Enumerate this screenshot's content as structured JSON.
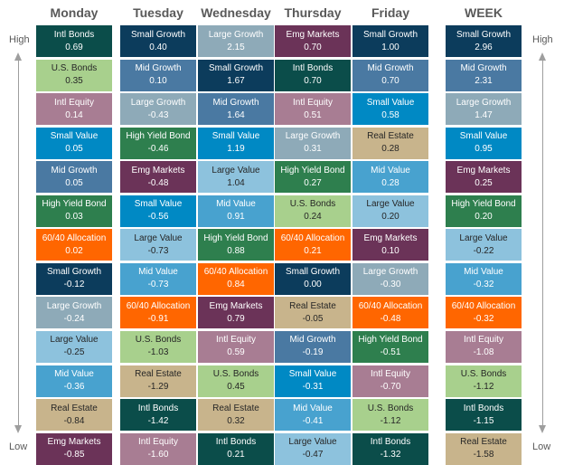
{
  "colors": {
    "Intl Bonds": "#0b4d4a",
    "U.S. Bonds": "#a8d08d",
    "Intl Equity": "#a87d93",
    "Small Value": "#0089c4",
    "Mid Growth": "#4a79a2",
    "High Yield Bond": "#2e7f4e",
    "60/40 Allocation": "#ff6600",
    "Small Growth": "#0c3c5c",
    "Large Growth": "#8eaab8",
    "Large Value": "#8dc2dd",
    "Mid Value": "#48a2cf",
    "Real Estate": "#c8b48c",
    "Emg Markets": "#6b3358"
  },
  "dark_text_assets": [
    "U.S. Bonds",
    "Large Value",
    "Real Estate"
  ],
  "side_labels": {
    "high_left": "High",
    "low_left": "Low",
    "high_right": "High",
    "low_right": "Low"
  },
  "chart_data": {
    "type": "table",
    "title": "",
    "columns": [
      {
        "name": "Monday",
        "rows": [
          {
            "asset": "Intl Bonds",
            "value": "0.69"
          },
          {
            "asset": "U.S. Bonds",
            "value": "0.35"
          },
          {
            "asset": "Intl Equity",
            "value": "0.14"
          },
          {
            "asset": "Small Value",
            "value": "0.05"
          },
          {
            "asset": "Mid Growth",
            "value": "0.05"
          },
          {
            "asset": "High Yield Bond",
            "value": "0.03"
          },
          {
            "asset": "60/40 Allocation",
            "value": "0.02"
          },
          {
            "asset": "Small Growth",
            "value": "-0.12"
          },
          {
            "asset": "Large Growth",
            "value": "-0.24"
          },
          {
            "asset": "Large Value",
            "value": "-0.25"
          },
          {
            "asset": "Mid Value",
            "value": "-0.36"
          },
          {
            "asset": "Real Estate",
            "value": "-0.84"
          },
          {
            "asset": "Emg Markets",
            "value": "-0.85"
          }
        ]
      },
      {
        "name": "Tuesday",
        "rows": [
          {
            "asset": "Small Growth",
            "value": "0.40"
          },
          {
            "asset": "Mid Growth",
            "value": "0.10"
          },
          {
            "asset": "Large Growth",
            "value": "-0.43"
          },
          {
            "asset": "High Yield Bond",
            "value": "-0.46"
          },
          {
            "asset": "Emg Markets",
            "value": "-0.48"
          },
          {
            "asset": "Small Value",
            "value": "-0.56"
          },
          {
            "asset": "Large Value",
            "value": "-0.73"
          },
          {
            "asset": "Mid Value",
            "value": "-0.73"
          },
          {
            "asset": "60/40 Allocation",
            "value": "-0.91"
          },
          {
            "asset": "U.S. Bonds",
            "value": "-1.03"
          },
          {
            "asset": "Real Estate",
            "value": "-1.29"
          },
          {
            "asset": "Intl Bonds",
            "value": "-1.42"
          },
          {
            "asset": "Intl Equity",
            "value": "-1.60"
          }
        ]
      },
      {
        "name": "Wednesday",
        "rows": [
          {
            "asset": "Large Growth",
            "value": "2.15"
          },
          {
            "asset": "Small Growth",
            "value": "1.67"
          },
          {
            "asset": "Mid Growth",
            "value": "1.64"
          },
          {
            "asset": "Small Value",
            "value": "1.19"
          },
          {
            "asset": "Large Value",
            "value": "1.04"
          },
          {
            "asset": "Mid Value",
            "value": "0.91"
          },
          {
            "asset": "High Yield Bond",
            "value": "0.88"
          },
          {
            "asset": "60/40 Allocation",
            "value": "0.84"
          },
          {
            "asset": "Emg Markets",
            "value": "0.79"
          },
          {
            "asset": "Intl Equity",
            "value": "0.59"
          },
          {
            "asset": "U.S. Bonds",
            "value": "0.45"
          },
          {
            "asset": "Real Estate",
            "value": "0.32"
          },
          {
            "asset": "Intl Bonds",
            "value": "0.21"
          }
        ]
      },
      {
        "name": "Thursday",
        "rows": [
          {
            "asset": "Emg Markets",
            "value": "0.70"
          },
          {
            "asset": "Intl Bonds",
            "value": "0.70"
          },
          {
            "asset": "Intl Equity",
            "value": "0.51"
          },
          {
            "asset": "Large Growth",
            "value": "0.31"
          },
          {
            "asset": "High Yield Bond",
            "value": "0.27"
          },
          {
            "asset": "U.S. Bonds",
            "value": "0.24"
          },
          {
            "asset": "60/40 Allocation",
            "value": "0.21"
          },
          {
            "asset": "Small Growth",
            "value": "0.00"
          },
          {
            "asset": "Real Estate",
            "value": "-0.05"
          },
          {
            "asset": "Mid Growth",
            "value": "-0.19"
          },
          {
            "asset": "Small Value",
            "value": "-0.31"
          },
          {
            "asset": "Mid Value",
            "value": "-0.41"
          },
          {
            "asset": "Large Value",
            "value": "-0.47"
          }
        ]
      },
      {
        "name": "Friday",
        "rows": [
          {
            "asset": "Small Growth",
            "value": "1.00"
          },
          {
            "asset": "Mid Growth",
            "value": "0.70"
          },
          {
            "asset": "Small Value",
            "value": "0.58"
          },
          {
            "asset": "Real Estate",
            "value": "0.28"
          },
          {
            "asset": "Mid Value",
            "value": "0.28"
          },
          {
            "asset": "Large Value",
            "value": "0.20"
          },
          {
            "asset": "Emg Markets",
            "value": "0.10"
          },
          {
            "asset": "Large Growth",
            "value": "-0.30"
          },
          {
            "asset": "60/40 Allocation",
            "value": "-0.48"
          },
          {
            "asset": "High Yield Bond",
            "value": "-0.51"
          },
          {
            "asset": "Intl Equity",
            "value": "-0.70"
          },
          {
            "asset": "U.S. Bonds",
            "value": "-1.12"
          },
          {
            "asset": "Intl Bonds",
            "value": "-1.32"
          }
        ]
      },
      {
        "name": "WEEK",
        "rows": [
          {
            "asset": "Small Growth",
            "value": "2.96"
          },
          {
            "asset": "Mid Growth",
            "value": "2.31"
          },
          {
            "asset": "Large Growth",
            "value": "1.47"
          },
          {
            "asset": "Small Value",
            "value": "0.95"
          },
          {
            "asset": "Emg Markets",
            "value": "0.25"
          },
          {
            "asset": "High Yield Bond",
            "value": "0.20"
          },
          {
            "asset": "Large Value",
            "value": "-0.22"
          },
          {
            "asset": "Mid Value",
            "value": "-0.32"
          },
          {
            "asset": "60/40 Allocation",
            "value": "-0.32"
          },
          {
            "asset": "Intl Equity",
            "value": "-1.08"
          },
          {
            "asset": "U.S. Bonds",
            "value": "-1.12"
          },
          {
            "asset": "Intl Bonds",
            "value": "-1.15"
          },
          {
            "asset": "Real Estate",
            "value": "-1.58"
          }
        ]
      }
    ]
  }
}
